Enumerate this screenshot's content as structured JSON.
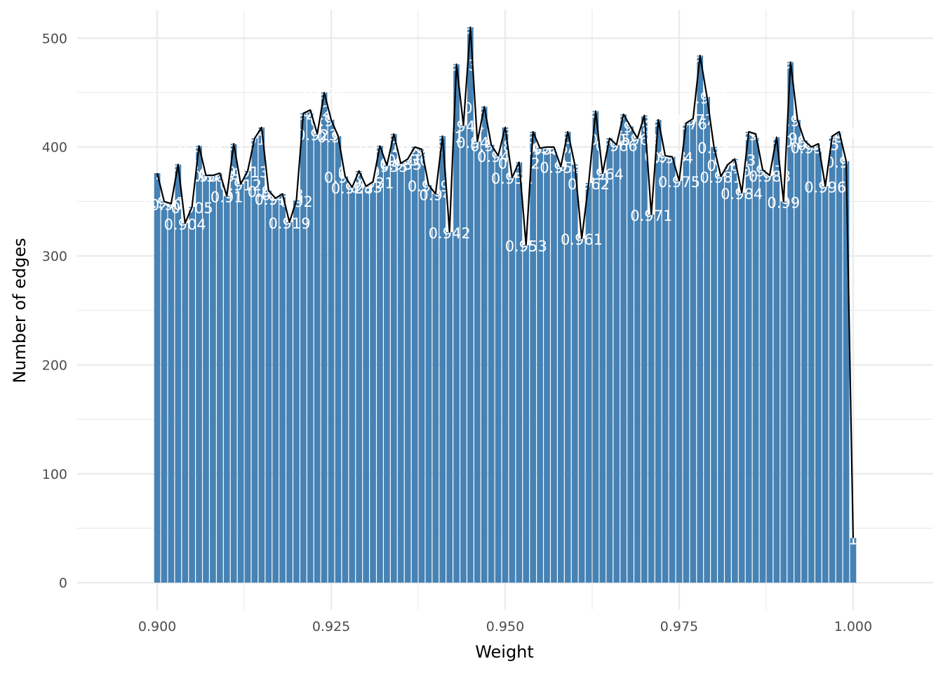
{
  "chart_data": {
    "type": "bar",
    "title": "",
    "xlabel": "Weight",
    "ylabel": "Number of edges",
    "xlim": [
      0.8885,
      1.0115
    ],
    "ylim": [
      -25,
      535
    ],
    "x_ticks": [
      "0.900",
      "0.925",
      "0.950",
      "0.975",
      "1.000"
    ],
    "y_ticks": [
      "0",
      "100",
      "200",
      "300",
      "400",
      "500"
    ],
    "grid": true,
    "legend": "none",
    "colors": {
      "bar": "#4682B4",
      "line": "#000000",
      "grid": "#ebebeb",
      "label": "#ffffff"
    },
    "series": [
      {
        "x": [
          0.9,
          0.901,
          0.902,
          0.903,
          0.904,
          0.905,
          0.906,
          0.907,
          0.908,
          0.909,
          0.91,
          0.911,
          0.912,
          0.913,
          0.914,
          0.915,
          0.916,
          0.917,
          0.918,
          0.919,
          0.92,
          0.921,
          0.922,
          0.923,
          0.924,
          0.925,
          0.926,
          0.927,
          0.928,
          0.929,
          0.93,
          0.931,
          0.932,
          0.933,
          0.934,
          0.935,
          0.936,
          0.937,
          0.938,
          0.939,
          0.94,
          0.941,
          0.942,
          0.943,
          0.944,
          0.945,
          0.946,
          0.947,
          0.948,
          0.949,
          0.95,
          0.951,
          0.952,
          0.953,
          0.954,
          0.955,
          0.956,
          0.957,
          0.958,
          0.959,
          0.96,
          0.961,
          0.962,
          0.963,
          0.964,
          0.965,
          0.966,
          0.967,
          0.968,
          0.969,
          0.97,
          0.971,
          0.972,
          0.973,
          0.974,
          0.975,
          0.976,
          0.977,
          0.978,
          0.979,
          0.98,
          0.981,
          0.982,
          0.983,
          0.984,
          0.985,
          0.986,
          0.987,
          0.988,
          0.989,
          0.99,
          0.991,
          0.992,
          0.993,
          0.994,
          0.995,
          0.996,
          0.997,
          0.998,
          0.999,
          1.0
        ],
        "values": [
          376,
          350,
          348,
          384,
          330,
          345,
          401,
          374,
          374,
          376,
          355,
          403,
          366,
          378,
          408,
          418,
          360,
          353,
          357,
          331,
          351,
          431,
          434,
          412,
          450,
          425,
          410,
          373,
          363,
          378,
          364,
          368,
          401,
          383,
          412,
          385,
          389,
          400,
          398,
          365,
          357,
          410,
          322,
          476,
          420,
          510,
          405,
          437,
          402,
          392,
          418,
          372,
          386,
          310,
          414,
          399,
          400,
          400,
          382,
          414,
          384,
          316,
          367,
          433,
          376,
          408,
          402,
          430,
          419,
          408,
          429,
          338,
          425,
          392,
          391,
          369,
          422,
          426,
          484,
          446,
          400,
          373,
          384,
          389,
          358,
          414,
          412,
          379,
          374,
          409,
          350,
          478,
          425,
          406,
          400,
          403,
          364,
          410,
          414,
          387,
          41
        ]
      }
    ],
    "data_labels": [
      "0.9",
      "0.901",
      "0.902",
      "0.903",
      "0.904",
      "0.905",
      "0.906",
      "0.907",
      "0.908",
      "0.909",
      "0.91",
      "0.911",
      "0.912",
      "0.913",
      "0.914",
      "0.915",
      "0.916",
      "0.917",
      "0.918",
      "0.919",
      "0.92",
      "0.921",
      "0.922",
      "0.923",
      "0.924",
      "0.925",
      "0.926",
      "0.927",
      "0.928",
      "0.929",
      "0.93",
      "0.931",
      "0.932",
      "0.933",
      "0.934",
      "0.935",
      "0.936",
      "0.937",
      "0.938",
      "0.939",
      "0.94",
      "0.941",
      "0.942",
      "0.943",
      "0.944",
      "0.945",
      "0.946",
      "0.947",
      "0.948",
      "0.949",
      "0.95",
      "0.951",
      "0.952",
      "0.953",
      "0.954",
      "0.955",
      "0.956",
      "0.957",
      "0.958",
      "0.959",
      "0.96",
      "0.961",
      "0.962",
      "0.963",
      "0.964",
      "0.965",
      "0.966",
      "0.967",
      "0.968",
      "0.969",
      "0.97",
      "0.971",
      "0.972",
      "0.973",
      "0.974",
      "0.975",
      "0.976",
      "0.977",
      "0.978",
      "0.979",
      "0.98",
      "0.981",
      "0.982",
      "0.983",
      "0.984",
      "0.985",
      "0.986",
      "0.987",
      "0.988",
      "0.989",
      "0.99",
      "0.991",
      "0.992",
      "0.993",
      "0.994",
      "0.995",
      "0.996",
      "0.997",
      "0.998",
      "0.999",
      "1"
    ]
  }
}
